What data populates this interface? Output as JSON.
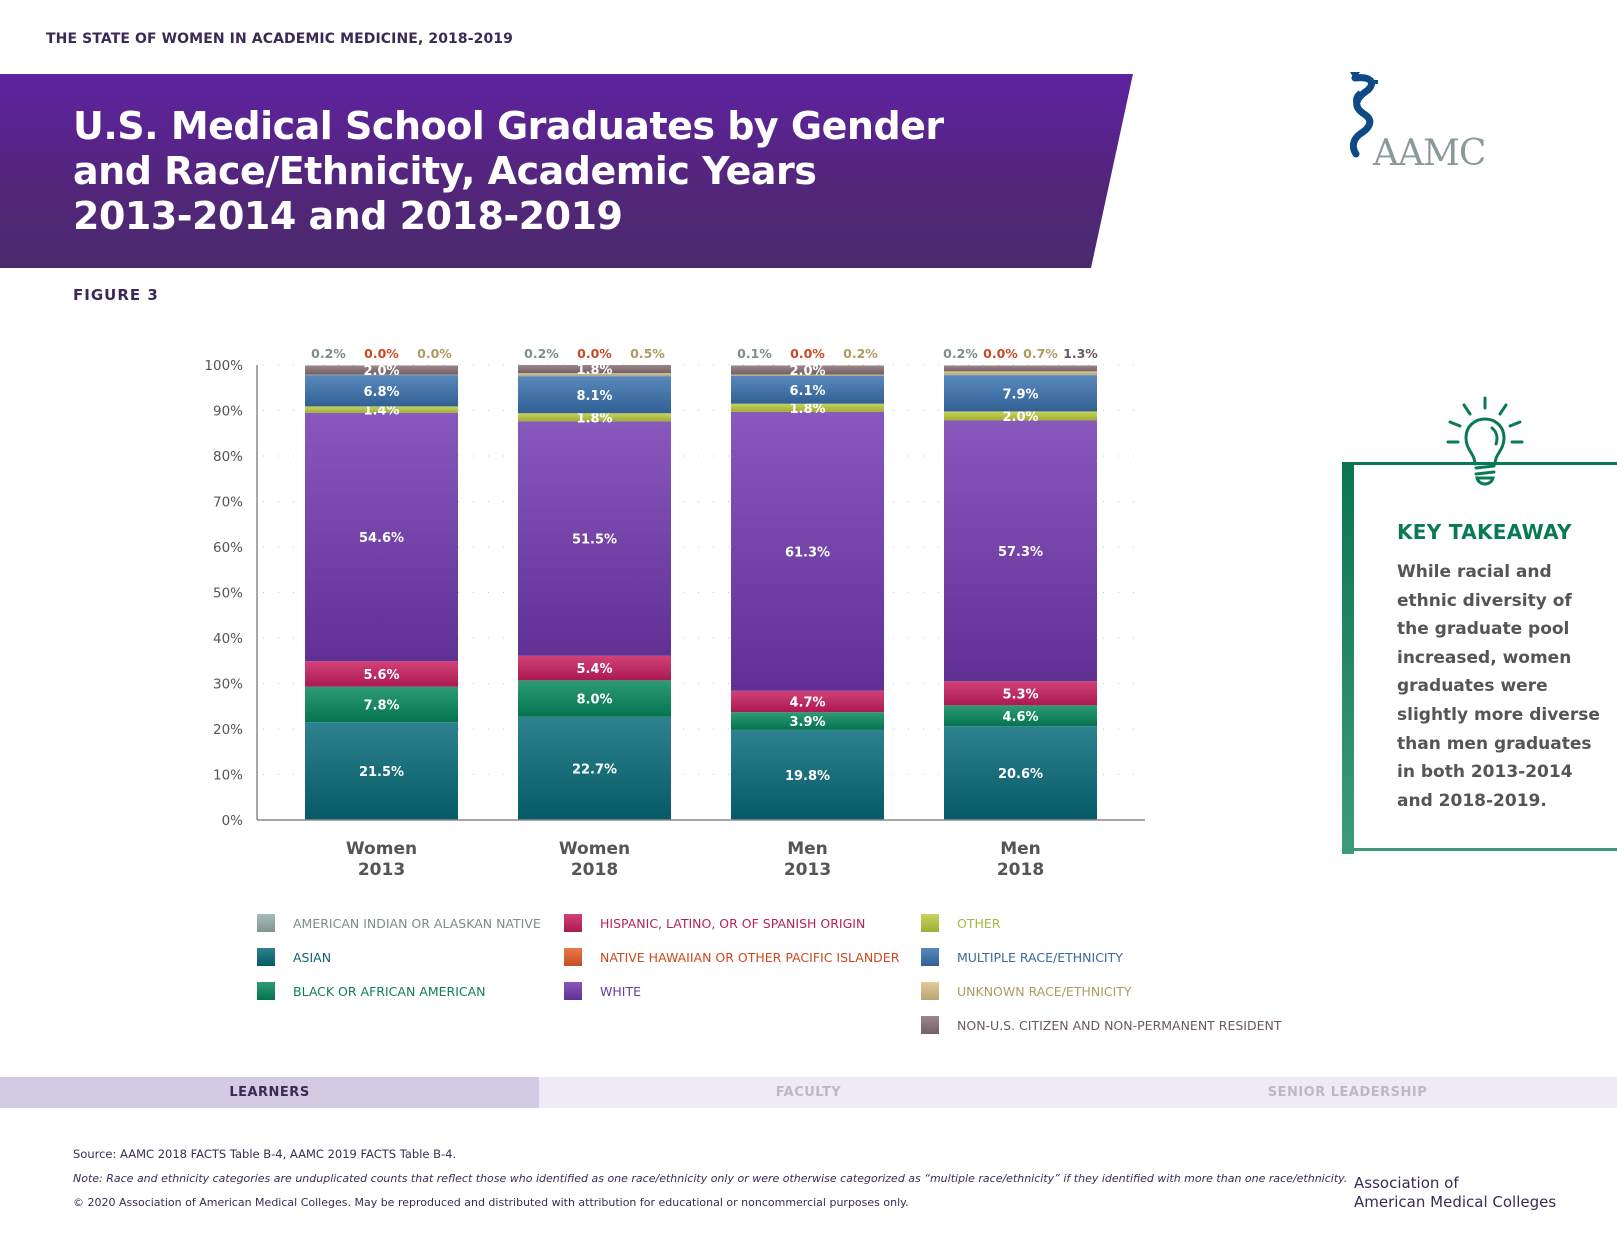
{
  "header": {
    "running_head": "THE STATE OF WOMEN IN ACADEMIC MEDICINE, 2018-2019",
    "title_lines": [
      "U.S. Medical School Graduates by Gender",
      "and Race/Ethnicity, Academic Years",
      "2013-2014 and 2018-2019"
    ],
    "logo_text": "AAMC",
    "figure_label": "FIGURE 3"
  },
  "chart_data": {
    "type": "bar",
    "stacked": true,
    "title": "U.S. Medical School Graduates by Gender and Race/Ethnicity, Academic Years 2013-2014 and 2018-2019",
    "xlabel": "",
    "ylabel": "",
    "ylim": [
      0,
      100
    ],
    "yticks": [
      "0%",
      "10%",
      "20%",
      "30%",
      "40%",
      "50%",
      "60%",
      "70%",
      "80%",
      "90%",
      "100%"
    ],
    "grid": "dotted-horizontal",
    "categories": [
      "Women 2013",
      "Women 2018",
      "Men 2013",
      "Men 2018"
    ],
    "category_lines": [
      [
        "Women",
        "2013"
      ],
      [
        "Women",
        "2018"
      ],
      [
        "Men",
        "2013"
      ],
      [
        "Men",
        "2018"
      ]
    ],
    "series": [
      {
        "name": "ASIAN",
        "color": "#0f6470",
        "label_color": "#0f6470",
        "values": [
          21.5,
          22.7,
          19.8,
          20.6
        ]
      },
      {
        "name": "BLACK OR AFRICAN AMERICAN",
        "color": "#0f7d58",
        "label_color": "#0f7d58",
        "values": [
          7.8,
          8.0,
          3.9,
          4.6
        ]
      },
      {
        "name": "HISPANIC, LATINO, OR OF SPANISH ORIGIN",
        "color": "#b4245a",
        "label_color": "#b4245a",
        "values": [
          5.6,
          5.4,
          4.7,
          5.3
        ]
      },
      {
        "name": "WHITE",
        "color": "#6a3a9e",
        "label_color": "#6a3a9e",
        "values": [
          54.6,
          51.5,
          61.3,
          57.3
        ]
      },
      {
        "name": "OTHER",
        "color": "#a9b63f",
        "label_color": "#a9b63f",
        "values": [
          1.4,
          1.8,
          1.8,
          2.0
        ]
      },
      {
        "name": "MULTIPLE RACE/ETHNICITY",
        "color": "#3a6a9e",
        "label_color": "#3a6a9e",
        "values": [
          6.8,
          8.1,
          6.1,
          7.9
        ]
      },
      {
        "name": "AMERICAN INDIAN OR ALASKAN NATIVE",
        "color": "#8a9e9c",
        "label_color": "#7a8e8c",
        "values": [
          0.2,
          0.2,
          0.1,
          0.2
        ]
      },
      {
        "name": "NATIVE HAWAIIAN OR OTHER PACIFIC ISLANDER",
        "color": "#cc5a2c",
        "label_color": "#c94a1e",
        "values": [
          0.0,
          0.0,
          0.0,
          0.0
        ]
      },
      {
        "name": "UNKNOWN RACE/ETHNICITY",
        "color": "#c4ad7c",
        "label_color": "#b09a60",
        "values": [
          0.0,
          0.5,
          0.2,
          0.7
        ]
      },
      {
        "name": "NON-U.S. CITIZEN AND NON-PERMANENT RESIDENT",
        "color": "#7e6a6e",
        "label_color": "#6a5a60",
        "values": [
          2.0,
          1.8,
          2.0,
          1.3
        ]
      }
    ],
    "inside_labels": {
      "ASIAN": [
        "21.5%",
        "22.7%",
        "19.8%",
        "20.6%"
      ],
      "BLACK OR AFRICAN AMERICAN": [
        "7.8%",
        "8.0%",
        "3.9%",
        "4.6%"
      ],
      "HISPANIC, LATINO, OR OF SPANISH ORIGIN": [
        "5.6%",
        "5.4%",
        "4.7%",
        "5.3%"
      ],
      "WHITE": [
        "54.6%",
        "51.5%",
        "61.3%",
        "57.3%"
      ],
      "OTHER": [
        "1.4%",
        "1.8%",
        "1.8%",
        "2.0%"
      ],
      "MULTIPLE RACE/ETHNICITY": [
        "6.8%",
        "8.1%",
        "6.1%",
        "7.9%"
      ],
      "NON-U.S. CITIZEN AND NON-PERMANENT RESIDENT": [
        "2.0%",
        "1.8%",
        "2.0%",
        ""
      ]
    },
    "top_labels": [
      [
        {
          "text": "0.2%",
          "series": "AMERICAN INDIAN OR ALASKAN NATIVE"
        },
        {
          "text": "0.0%",
          "series": "NATIVE HAWAIIAN OR OTHER PACIFIC ISLANDER"
        },
        {
          "text": "0.0%",
          "series": "UNKNOWN RACE/ETHNICITY"
        }
      ],
      [
        {
          "text": "0.2%",
          "series": "AMERICAN INDIAN OR ALASKAN NATIVE"
        },
        {
          "text": "0.0%",
          "series": "NATIVE HAWAIIAN OR OTHER PACIFIC ISLANDER"
        },
        {
          "text": "0.5%",
          "series": "UNKNOWN RACE/ETHNICITY"
        }
      ],
      [
        {
          "text": "0.1%",
          "series": "AMERICAN INDIAN OR ALASKAN NATIVE"
        },
        {
          "text": "0.0%",
          "series": "NATIVE HAWAIIAN OR OTHER PACIFIC ISLANDER"
        },
        {
          "text": "0.2%",
          "series": "UNKNOWN RACE/ETHNICITY"
        }
      ],
      [
        {
          "text": "0.2%",
          "series": "AMERICAN INDIAN OR ALASKAN NATIVE"
        },
        {
          "text": "0.0%",
          "series": "NATIVE HAWAIIAN OR OTHER PACIFIC ISLANDER"
        },
        {
          "text": "0.7%",
          "series": "UNKNOWN RACE/ETHNICITY"
        },
        {
          "text": "1.3%",
          "series": "NON-U.S. CITIZEN AND NON-PERMANENT RESIDENT"
        }
      ]
    ],
    "legend": {
      "placement": "bottom",
      "columns": [
        [
          "AMERICAN INDIAN OR ALASKAN NATIVE",
          "ASIAN",
          "BLACK OR AFRICAN AMERICAN"
        ],
        [
          "HISPANIC, LATINO, OR OF SPANISH ORIGIN",
          "NATIVE HAWAIIAN OR OTHER PACIFIC ISLANDER",
          "WHITE"
        ],
        [
          "OTHER",
          "MULTIPLE RACE/ETHNICITY",
          "UNKNOWN RACE/ETHNICITY",
          "NON-U.S. CITIZEN AND NON-PERMANENT RESIDENT"
        ]
      ]
    }
  },
  "takeaway": {
    "icon": "lightbulb-icon",
    "title": "KEY TAKEAWAY",
    "text": "While racial and ethnic diversity of the graduate pool increased, women graduates were slightly more diverse than men graduates in both 2013-2014 and 2018-2019."
  },
  "nav": {
    "tabs": [
      {
        "label": "LEARNERS",
        "active": true
      },
      {
        "label": "FACULTY",
        "active": false
      },
      {
        "label": "SENIOR LEADERSHIP",
        "active": false
      }
    ]
  },
  "footer": {
    "source": "Source: AAMC 2018 FACTS Table B-4, AAMC 2019 FACTS Table B-4.",
    "note": "Note: Race and ethnicity categories are unduplicated counts that reflect those who identified as one race/ethnicity only or were otherwise categorized as “multiple race/ethnicity” if they identified with more than one race/ethnicity.",
    "copyright": "© 2020 Association of American Medical Colleges. May be reproduced and distributed with attribution for educational or noncommercial purposes only.",
    "org_line1": "Association of",
    "org_line2": "American Medical Colleges"
  }
}
